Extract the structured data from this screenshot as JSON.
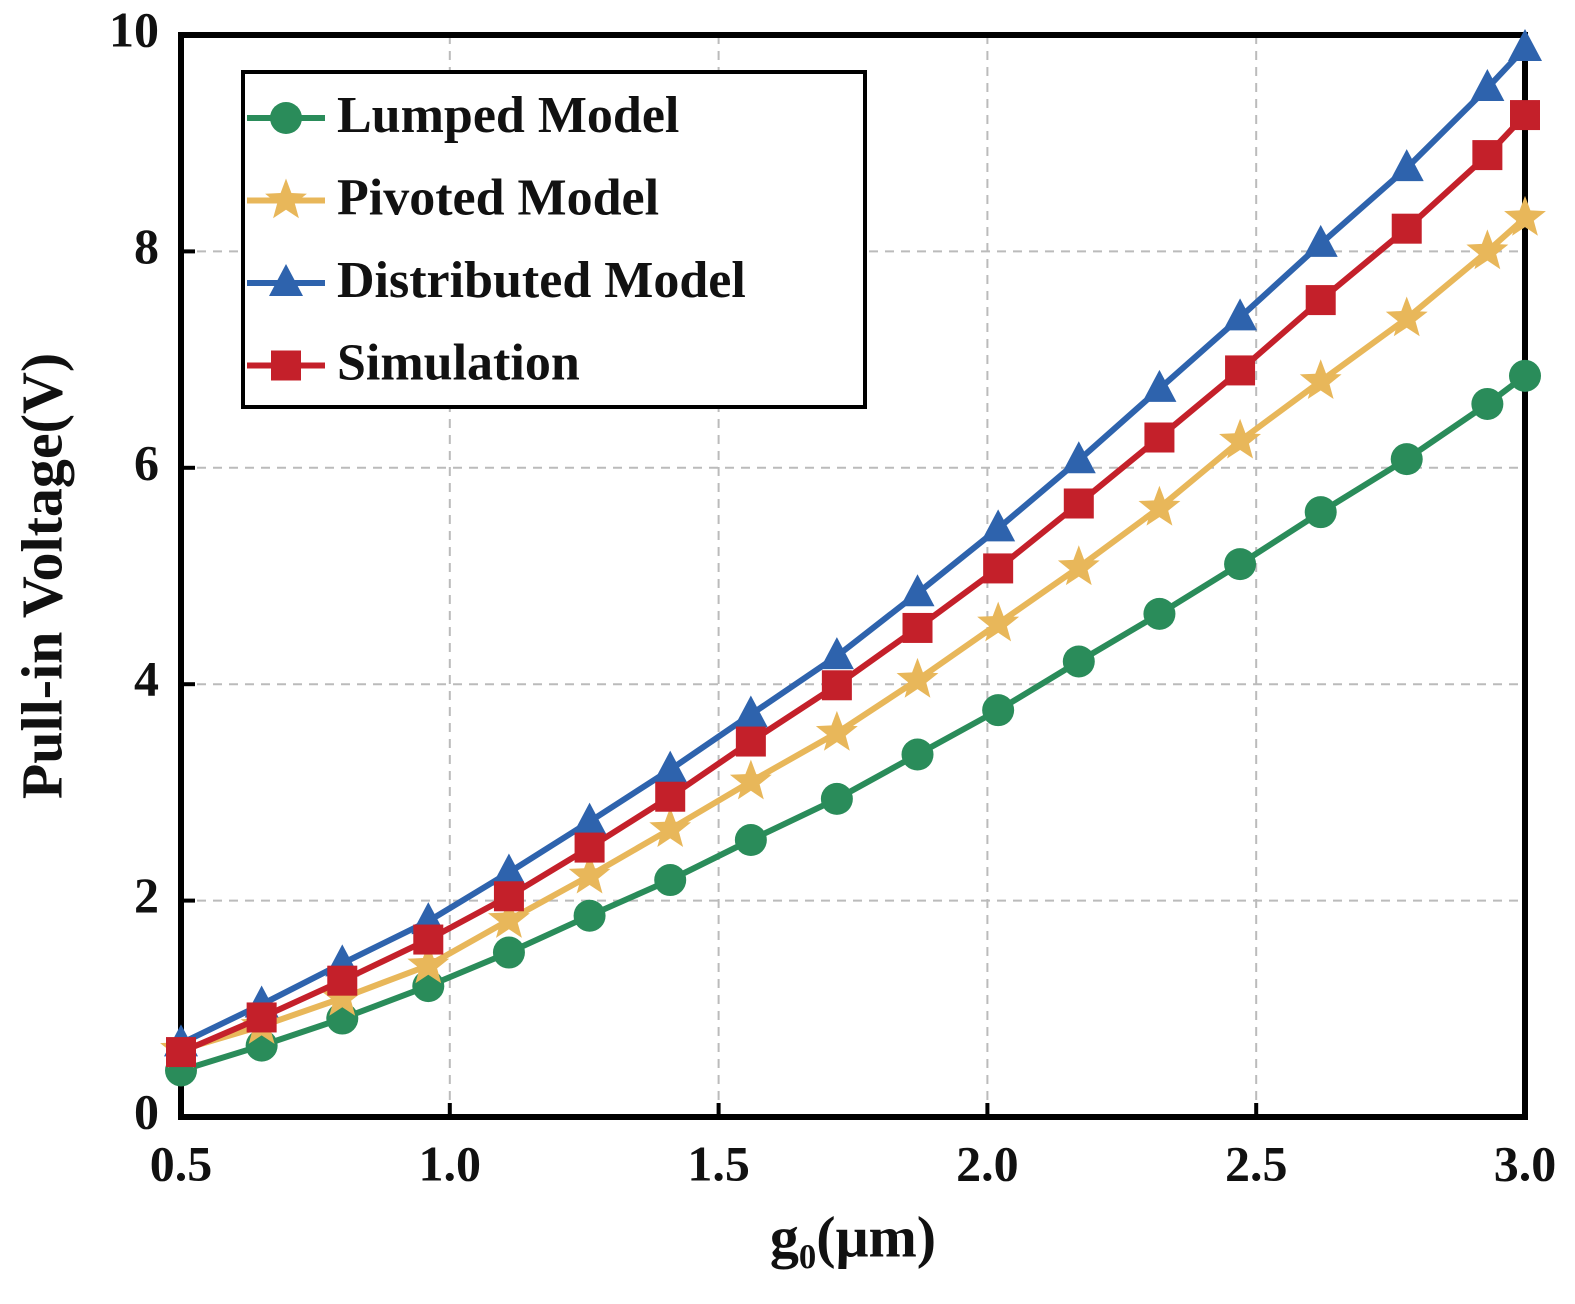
{
  "chart_data": {
    "type": "line",
    "x_label": "g₀(μm)",
    "y_label": "Pull-in Voltage(V)",
    "x": [
      0.5,
      0.65,
      0.8,
      0.96,
      1.11,
      1.26,
      1.41,
      1.56,
      1.72,
      1.87,
      2.02,
      2.17,
      2.32,
      2.47,
      2.62,
      2.78,
      2.93,
      3.0
    ],
    "series": [
      {
        "name": "Lumped Model",
        "color": "#2a8c5a",
        "marker": "circle",
        "values": [
          0.43,
          0.66,
          0.91,
          1.21,
          1.52,
          1.86,
          2.19,
          2.56,
          2.94,
          3.35,
          3.76,
          4.21,
          4.65,
          5.11,
          5.59,
          6.08,
          6.59,
          6.85
        ]
      },
      {
        "name": "Pivoted Model",
        "color": "#e8b75a",
        "marker": "star",
        "values": [
          0.62,
          0.84,
          1.1,
          1.4,
          1.82,
          2.23,
          2.66,
          3.1,
          3.55,
          4.04,
          4.56,
          5.08,
          5.63,
          6.25,
          6.8,
          7.38,
          8.0,
          8.31
        ]
      },
      {
        "name": "Distributed Model",
        "color": "#2e63ad",
        "marker": "triangle",
        "values": [
          0.68,
          1.04,
          1.42,
          1.81,
          2.26,
          2.73,
          3.21,
          3.72,
          4.26,
          4.84,
          5.44,
          6.07,
          6.73,
          7.39,
          8.07,
          8.77,
          9.51,
          9.88
        ]
      },
      {
        "name": "Simulation",
        "color": "#c4202a",
        "marker": "square",
        "values": [
          0.6,
          0.92,
          1.26,
          1.64,
          2.04,
          2.49,
          2.96,
          3.47,
          3.99,
          4.52,
          5.07,
          5.67,
          6.28,
          6.9,
          7.55,
          8.21,
          8.89,
          9.26
        ]
      }
    ],
    "xlim": [
      0.5,
      3.0
    ],
    "ylim": [
      0,
      10
    ],
    "xticks": [
      0.5,
      {
        "value": 1,
        "label": "1.0"
      },
      1.5,
      {
        "value": 2,
        "label": "2.0"
      },
      2.5,
      {
        "value": 3,
        "label": "3.0"
      }
    ],
    "yticks": [
      0,
      2,
      4,
      6,
      8,
      10
    ],
    "grid": true,
    "legend": "upper left"
  }
}
